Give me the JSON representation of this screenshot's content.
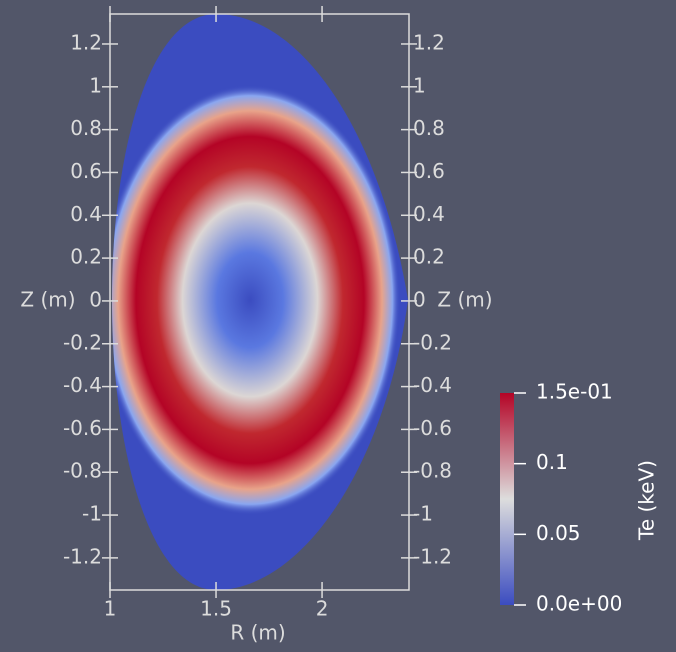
{
  "chart_data": {
    "type": "field",
    "xlabel": "R (m)",
    "ylabel": "Z (m)",
    "xlim": [
      1,
      2.41
    ],
    "xticks": [
      1,
      1.5,
      2
    ],
    "ylim": [
      -1.35,
      1.34
    ],
    "yticks": [
      1.2,
      1,
      0.8,
      0.6,
      0.4,
      0.2,
      0,
      -0.2,
      -0.4,
      -0.6,
      -0.8,
      -1,
      -1.2
    ],
    "colorbar": {
      "title": "Te (keV)",
      "lim": [
        0,
        0.15
      ],
      "ticks": [
        {
          "value": 0.15,
          "label": "1.5e-01"
        },
        0.1,
        0.05,
        {
          "value": 0,
          "label": "0.0e+00"
        }
      ]
    }
  }
}
